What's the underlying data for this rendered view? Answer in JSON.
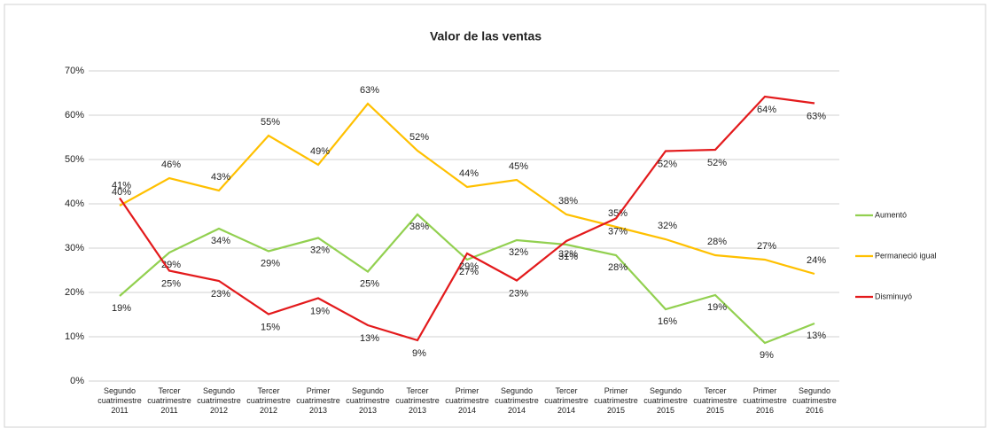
{
  "chart_data": {
    "type": "line",
    "title": "Valor de las ventas",
    "categories": [
      "Segundo cuatrimestre 2011",
      "Tercer cuatrimestre 2011",
      "Segundo cuatrimestre 2012",
      "Tercer cuatrimestre 2012",
      "Primer cuatrimestre 2013",
      "Segundo cuatrimestre 2013",
      "Tercer cuatrimestre 2013",
      "Primer cuatrimestre 2014",
      "Segundo cuatrimestre 2014",
      "Tercer cuatrimestre 2014",
      "Primer cuatrimestre 2015",
      "Segundo cuatrimestre 2015",
      "Tercer cuatrimestre 2015",
      "Primer cuatrimestre 2016",
      "Segundo cuatrimestre 2016"
    ],
    "series": [
      {
        "name": "Aumentó",
        "color": "#92d050",
        "values": [
          19.2,
          29.0,
          34.4,
          29.3,
          32.3,
          24.7,
          37.6,
          27.4,
          31.8,
          30.8,
          28.4,
          16.2,
          19.4,
          8.6,
          13.0
        ],
        "value_labels": [
          "19%",
          "29%",
          "34%",
          "29%",
          "32%",
          "25%",
          "38%",
          "27%",
          "32%",
          "31%",
          "28%",
          "16%",
          "19%",
          "9%",
          "13%"
        ]
      },
      {
        "name": "Permaneció igual",
        "color": "#ffc000",
        "values": [
          39.6,
          45.8,
          43.0,
          55.4,
          48.8,
          62.6,
          52.0,
          43.8,
          45.4,
          37.6,
          34.8,
          32.0,
          28.4,
          27.4,
          24.2
        ],
        "value_labels": [
          "40%",
          "46%",
          "43%",
          "55%",
          "49%",
          "63%",
          "52%",
          "44%",
          "45%",
          "38%",
          "35%",
          "32%",
          "28%",
          "27%",
          "24%"
        ]
      },
      {
        "name": "Disminuyó",
        "color": "#e31a1c",
        "values": [
          41.3,
          24.9,
          22.6,
          15.1,
          18.7,
          12.6,
          9.2,
          28.8,
          22.7,
          31.6,
          36.7,
          51.9,
          52.2,
          64.2,
          62.7
        ],
        "value_labels": [
          "41%",
          "25%",
          "23%",
          "15%",
          "19%",
          "13%",
          "9%",
          "29%",
          "23%",
          "32%",
          "37%",
          "52%",
          "52%",
          "64%",
          "63%"
        ]
      }
    ],
    "ylim": [
      0,
      70
    ],
    "yticks": [
      {
        "value": 0,
        "label": "0%"
      },
      {
        "value": 10,
        "label": "10%"
      },
      {
        "value": 20,
        "label": "20%"
      },
      {
        "value": 30,
        "label": "30%"
      },
      {
        "value": 40,
        "label": "40%"
      },
      {
        "value": 50,
        "label": "50%"
      },
      {
        "value": 60,
        "label": "60%"
      },
      {
        "value": 70,
        "label": "70%"
      }
    ],
    "grid": true,
    "legend": "right"
  }
}
